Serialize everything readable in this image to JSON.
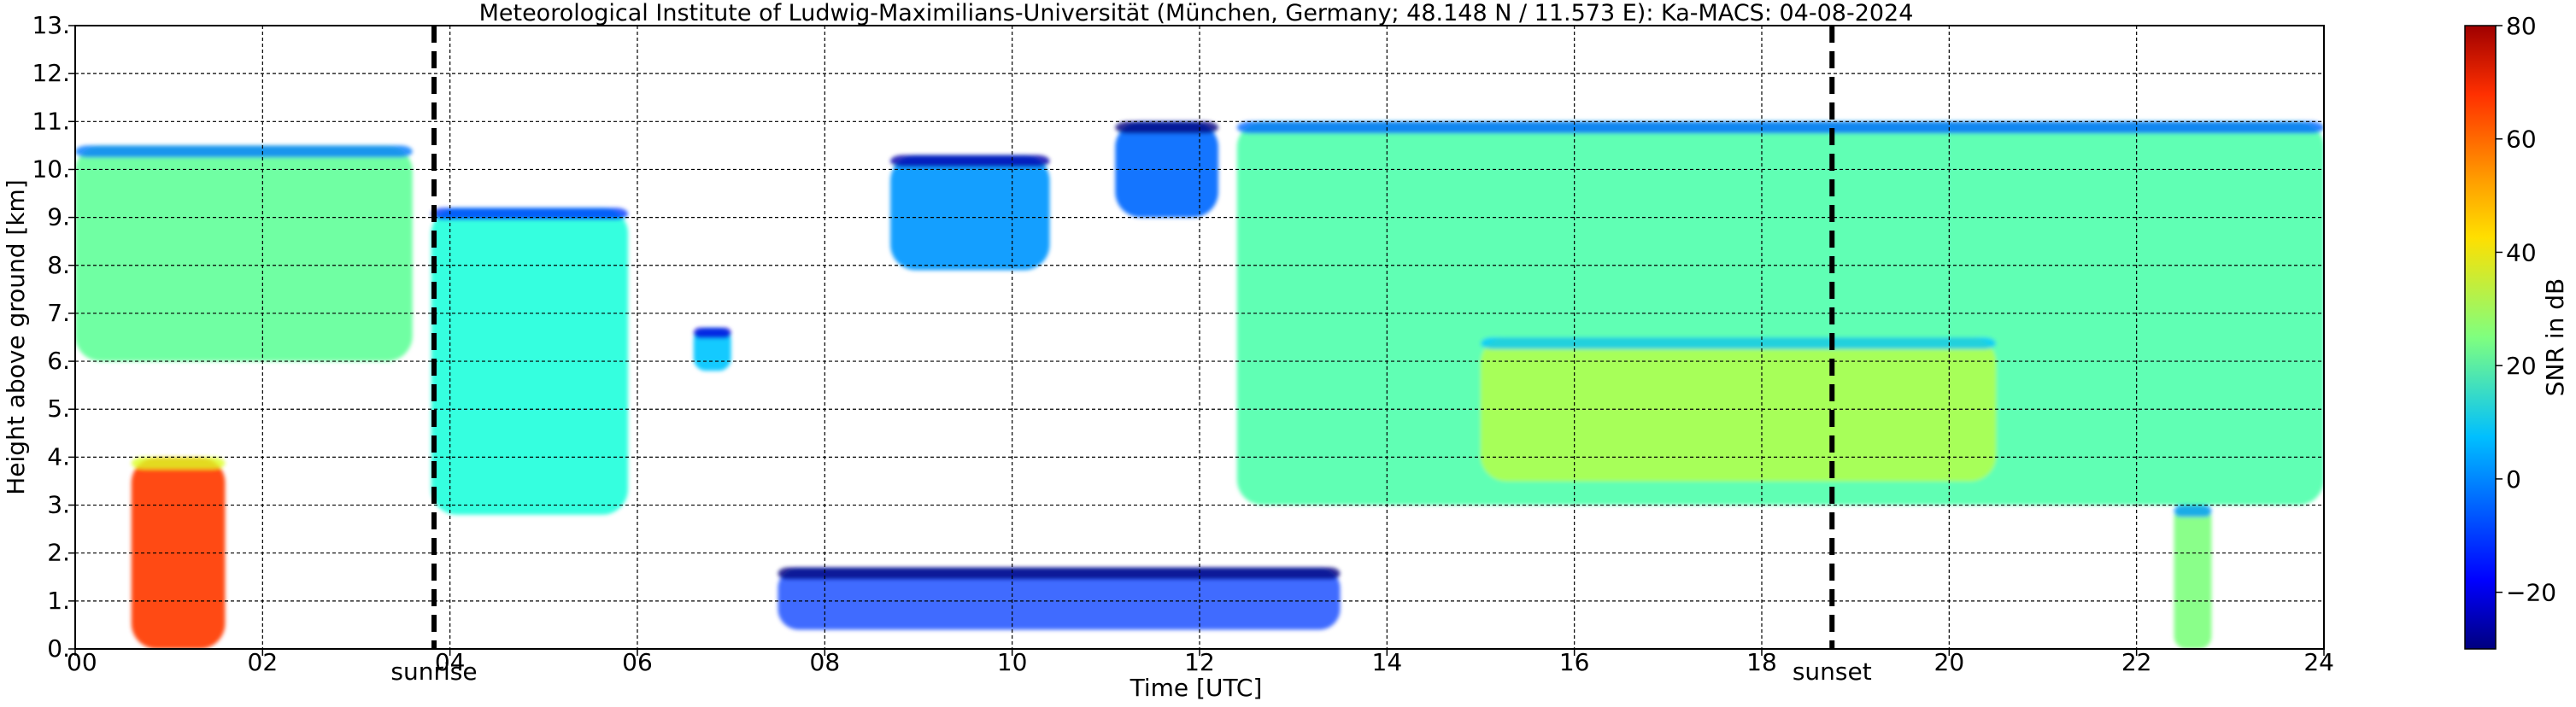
{
  "chart_data": {
    "type": "heatmap",
    "title": "Meteorological Institute of Ludwig-Maximilians-Universität (München, Germany; 48.148 N / 11.573 E):    Ka-MACS: 04-08-2024",
    "xlabel": "Time [UTC]",
    "ylabel": "Height above ground [km]",
    "xlim": [
      0,
      24
    ],
    "ylim": [
      0,
      13
    ],
    "x_ticks": [
      "00",
      "02",
      "04",
      "06",
      "08",
      "10",
      "12",
      "14",
      "16",
      "18",
      "20",
      "22",
      "24"
    ],
    "y_ticks": [
      "0.",
      "1.",
      "2.",
      "3.",
      "4.",
      "5.",
      "6.",
      "7.",
      "8.",
      "9.",
      "10.",
      "11.",
      "12.",
      "13."
    ],
    "grid": true,
    "colorbar": {
      "label": "SNR in dB",
      "range": [
        -30,
        80
      ],
      "ticks": [
        "80",
        "60",
        "40",
        "20",
        "0",
        "−20"
      ],
      "tick_values": [
        80,
        60,
        40,
        20,
        0,
        -20
      ],
      "colormap": "jet"
    },
    "markers": [
      {
        "label": "sunrise",
        "time_utc": 3.83
      },
      {
        "label": "sunset",
        "time_utc": 18.75
      }
    ],
    "echo_regions": [
      {
        "x": [
          0.0,
          3.6
        ],
        "y": [
          6.0,
          10.5
        ],
        "snr": 22
      },
      {
        "x": [
          0.6,
          1.6
        ],
        "y": [
          0.0,
          4.0
        ],
        "snr": 60
      },
      {
        "x": [
          3.8,
          5.9
        ],
        "y": [
          2.8,
          9.2
        ],
        "snr": 15
      },
      {
        "x": [
          6.6,
          7.0
        ],
        "y": [
          5.8,
          6.7
        ],
        "snr": 5
      },
      {
        "x": [
          8.7,
          10.4
        ],
        "y": [
          7.9,
          10.3
        ],
        "snr": 0
      },
      {
        "x": [
          11.1,
          12.2
        ],
        "y": [
          9.0,
          11.0
        ],
        "snr": -5
      },
      {
        "x": [
          12.4,
          24.0
        ],
        "y": [
          3.0,
          11.0
        ],
        "snr": 20
      },
      {
        "x": [
          15.0,
          20.5
        ],
        "y": [
          3.5,
          6.5
        ],
        "snr": 30
      },
      {
        "x": [
          22.4,
          22.8
        ],
        "y": [
          0.0,
          3.0
        ],
        "snr": 25
      },
      {
        "x": [
          7.5,
          13.5
        ],
        "y": [
          0.4,
          1.7
        ],
        "snr": -10
      }
    ]
  }
}
